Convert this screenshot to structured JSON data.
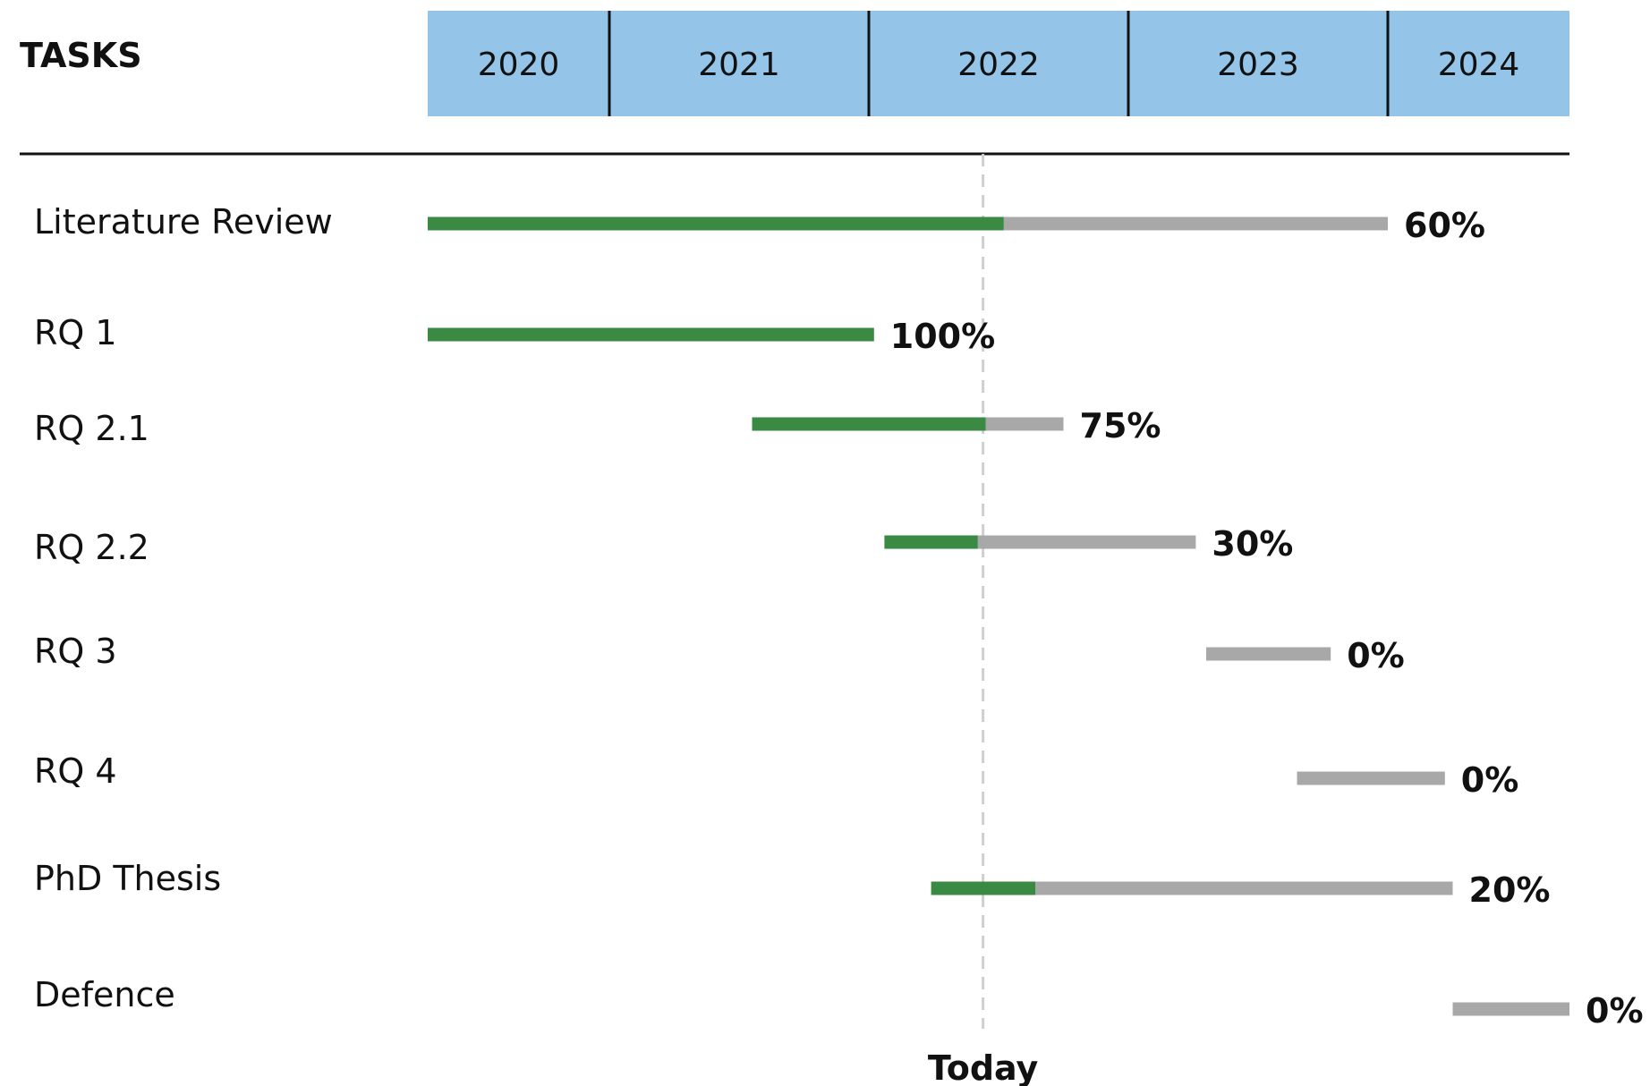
{
  "header": {
    "tasks_label": "TASKS"
  },
  "today_label": "Today",
  "colors": {
    "year_band": "#94c5e8",
    "done": "#3a8a44",
    "remaining": "#a8a8a8",
    "today_line": "#cfcfcf",
    "divider": "#111111"
  },
  "chart_data": {
    "type": "gantt",
    "title": "",
    "x_axis": {
      "unit": "year",
      "min": 2020.3,
      "max": 2024.7,
      "year_labels": [
        "2020",
        "2021",
        "2022",
        "2023",
        "2024"
      ],
      "year_boundaries": [
        2021,
        2022,
        2023,
        2024
      ]
    },
    "today": 2022.44,
    "tasks": [
      {
        "name": "Literature Review",
        "start": 2020.3,
        "end": 2024.0,
        "progress": 0.6,
        "label": "60%"
      },
      {
        "name": "RQ 1",
        "start": 2020.3,
        "end": 2022.02,
        "progress": 1.0,
        "label": "100%"
      },
      {
        "name": "RQ 2.1",
        "start": 2021.55,
        "end": 2022.75,
        "progress": 0.75,
        "label": "75%"
      },
      {
        "name": "RQ 2.2",
        "start": 2022.06,
        "end": 2023.26,
        "progress": 0.3,
        "label": "30%"
      },
      {
        "name": "RQ 3",
        "start": 2023.3,
        "end": 2023.78,
        "progress": 0.0,
        "label": "0%"
      },
      {
        "name": "RQ 4",
        "start": 2023.65,
        "end": 2024.22,
        "progress": 0.0,
        "label": "0%"
      },
      {
        "name": "PhD Thesis",
        "start": 2022.24,
        "end": 2024.25,
        "progress": 0.2,
        "label": "20%"
      },
      {
        "name": "Defence",
        "start": 2024.25,
        "end": 2024.7,
        "progress": 0.0,
        "label": "0%"
      }
    ]
  }
}
